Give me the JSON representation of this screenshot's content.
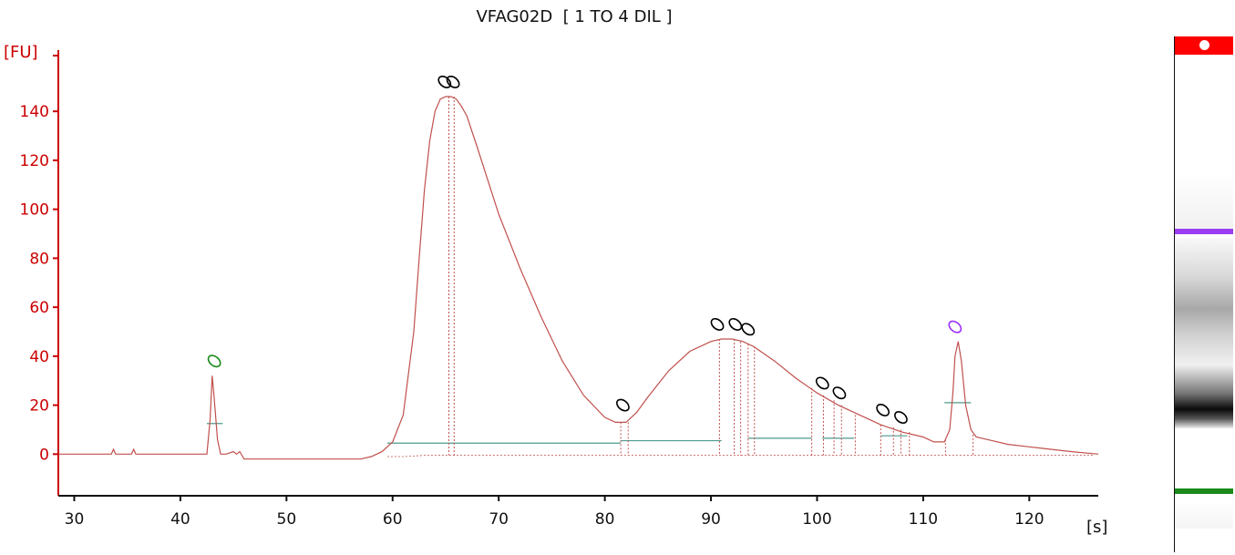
{
  "chart_data": {
    "type": "line",
    "title": "VFAG02D  [ 1 TO 4 DIL ]",
    "xlabel": "[s]",
    "ylabel": "[FU]",
    "xlim": [
      28.5,
      126.5
    ],
    "ylim": [
      -17,
      165
    ],
    "xticks": [
      30,
      40,
      50,
      60,
      70,
      80,
      90,
      100,
      110,
      120
    ],
    "yticks": [
      0,
      20,
      40,
      60,
      80,
      100,
      120,
      140
    ],
    "grid": false,
    "colors": {
      "axis": "#cc0000",
      "trace": "#c0504d",
      "baseline": "#4f9a8e",
      "marker_black": "#000000",
      "marker_green": "#1a8a1a",
      "marker_purple": "#9b30ff"
    },
    "series": [
      {
        "values_note_removed": true,
        "x": [
          28.5,
          33.5,
          33.7,
          33.9,
          35.4,
          35.6,
          35.8,
          42.5,
          42.8,
          43.0,
          43.2,
          43.5,
          43.8,
          44.3,
          45.0,
          45.3,
          45.6,
          46.0,
          57.0,
          58.0,
          59.0,
          60.0,
          61.0,
          62.0,
          62.5,
          63.0,
          63.5,
          64.0,
          64.5,
          65.0,
          65.5,
          66.0,
          66.5,
          67.0,
          68.0,
          70.0,
          72.0,
          74.0,
          76.0,
          78.0,
          80.0,
          81.0,
          82.0,
          83.0,
          84.0,
          86.0,
          88.0,
          90.0,
          91.0,
          92.0,
          93.0,
          94.0,
          96.0,
          98.0,
          100.0,
          102.0,
          104.0,
          106.0,
          108.0,
          110.0,
          111.0,
          112.0,
          112.5,
          112.8,
          113.0,
          113.3,
          113.6,
          114.0,
          114.5,
          115.0,
          116.0,
          118.0,
          120.0,
          122.0,
          124.0,
          126.5
        ],
        "y": [
          0,
          0,
          2,
          0,
          0,
          2,
          0,
          0,
          14,
          32,
          22,
          6,
          0,
          0,
          1,
          0,
          1,
          -2,
          -2,
          -1,
          1,
          5,
          16,
          50,
          80,
          108,
          128,
          140,
          145,
          146,
          146,
          145,
          142,
          138,
          125,
          98,
          76,
          56,
          38,
          24,
          15,
          13,
          13,
          17,
          23,
          34,
          42,
          46,
          47,
          47,
          46,
          44,
          38,
          31,
          25,
          20,
          16,
          12,
          9,
          7,
          5,
          5,
          10,
          25,
          40,
          46,
          38,
          20,
          10,
          7,
          6,
          4,
          3,
          2,
          1,
          0
        ]
      }
    ],
    "peak_markers": [
      {
        "x": 43.2,
        "y": 38,
        "color": "green"
      },
      {
        "x": 64.9,
        "y": 152,
        "color": "black"
      },
      {
        "x": 65.7,
        "y": 152,
        "color": "black"
      },
      {
        "x": 81.7,
        "y": 20,
        "color": "black"
      },
      {
        "x": 90.6,
        "y": 53,
        "color": "black"
      },
      {
        "x": 92.3,
        "y": 53,
        "color": "black"
      },
      {
        "x": 93.5,
        "y": 51,
        "color": "black"
      },
      {
        "x": 100.5,
        "y": 29,
        "color": "black"
      },
      {
        "x": 102.1,
        "y": 25,
        "color": "black"
      },
      {
        "x": 106.2,
        "y": 18,
        "color": "black"
      },
      {
        "x": 107.9,
        "y": 15,
        "color": "black"
      },
      {
        "x": 113.0,
        "y": 52,
        "color": "purple"
      }
    ],
    "gel_bands": [
      {
        "label": "upper-marker",
        "position": 0.95,
        "color": "#ff0000"
      },
      {
        "label": "upper-marker-line",
        "position": 0.52,
        "color": "#9b30ff"
      },
      {
        "label": "lower-marker-line",
        "position": 0.07,
        "color": "#1a8a1a"
      }
    ]
  }
}
